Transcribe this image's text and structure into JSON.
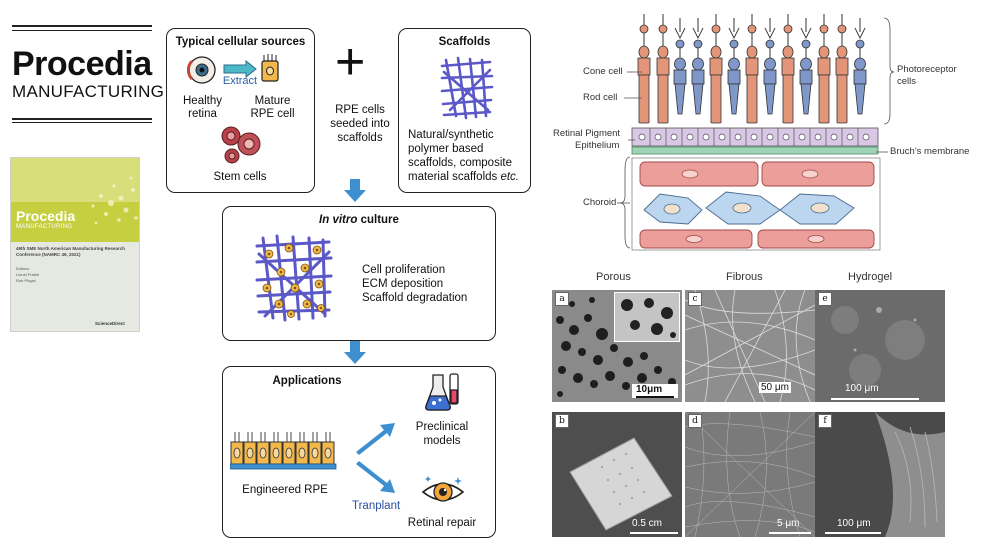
{
  "journal": {
    "name": "Procedia",
    "subtitle": "MANUFACTURING",
    "cover": {
      "title": "Procedia",
      "subtitle": "MANUFACTURING",
      "conference": "49th SME North American Manufacturing Research Conference (NAMRC 49, 2021)",
      "editors_label": "Editors:",
      "editor1": "Lionel Fratini",
      "editor2": "Rob Plugel",
      "publisher": "ScienceDirect"
    }
  },
  "flow": {
    "sources": {
      "title": "Typical cellular sources",
      "extract": "Extract",
      "healthy_l1": "Healthy",
      "healthy_l2": "retina",
      "mature_l1": "Mature",
      "mature_l2": "RPE cell",
      "stem": "Stem cells"
    },
    "plus": "+",
    "seeded_l1": "RPE cells",
    "seeded_l2": "seeded into",
    "seeded_l3": "scaffolds",
    "scaffolds": {
      "title": "Scaffolds",
      "d1": "Natural/synthetic",
      "d2": "polymer based",
      "d3": "scaffolds, composite",
      "d4": "material scaffolds ",
      "d4_italic": "etc."
    },
    "culture": {
      "title_italic": "In vitro",
      "title_rest": " culture",
      "item1": "Cell proliferation",
      "item2": "ECM deposition",
      "item3": "Scaffold degradation"
    },
    "applications": {
      "title": "Applications",
      "engineered": "Engineered RPE",
      "preclinical_l1": "Preclinical",
      "preclinical_l2": "models",
      "transplant": "Tranplant",
      "repair": "Retinal repair"
    }
  },
  "retina": {
    "cone": "Cone cell",
    "rod": "Rod cell",
    "rpe_l1": "Retinal Pigment",
    "rpe_l2": "Epithelium",
    "choroid": "Choroid",
    "photo_l1": "Photoreceptor",
    "photo_l2": "cells",
    "bruch": "Bruch's membrane"
  },
  "micrographs": {
    "porous": "Porous",
    "fibrous": "Fibrous",
    "hydrogel": "Hydrogel",
    "panels": [
      {
        "label": "a",
        "scale": "10μm"
      },
      {
        "label": "c",
        "scale": "50 μm"
      },
      {
        "label": "e",
        "scale": "100 μm"
      },
      {
        "label": "b",
        "scale": "0.5 cm"
      },
      {
        "label": "d",
        "scale": "5 μm"
      },
      {
        "label": "f",
        "scale": "100 μm"
      }
    ]
  },
  "colors": {
    "rod": "#e3957a",
    "cone": "#7f97c9",
    "rpe": "#d9c7e6",
    "bruch": "#9fd3b5",
    "choroid_red": "#ec9e9a",
    "choroid_blue": "#bcd6ef",
    "scaffold": "#5b58c8",
    "cell": "#f2b84b",
    "arrow": "#3d8fcf"
  }
}
